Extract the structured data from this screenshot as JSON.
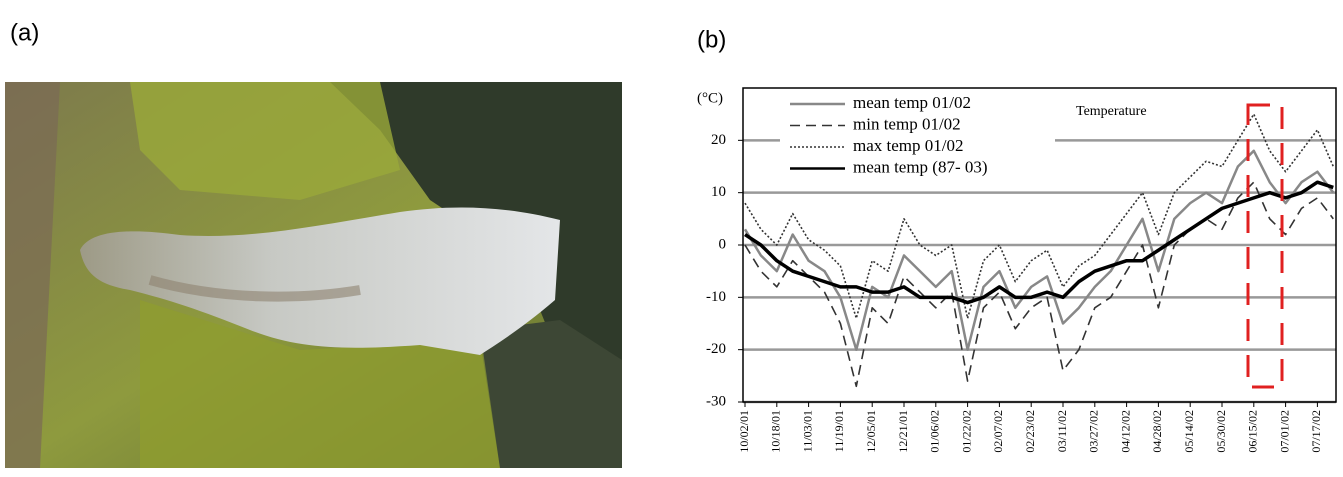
{
  "panel_labels": [
    "(a)",
    "(b)"
  ],
  "chart_data": {
    "type": "line",
    "y_label": "(°C)",
    "annotation": "Temperature",
    "categories": [
      "10/02/01",
      null,
      "10/18/01",
      null,
      "11/03/01",
      null,
      "11/19/01",
      null,
      "12/05/01",
      null,
      "12/21/01",
      null,
      "01/06/02",
      null,
      "01/22/02",
      null,
      "02/07/02",
      null,
      "02/23/02",
      null,
      "03/11/02",
      null,
      "03/27/02",
      null,
      "04/12/02",
      null,
      "04/28/02",
      null,
      "05/14/02",
      null,
      "05/30/02",
      null,
      "06/15/02",
      null,
      "07/01/02",
      null,
      "07/17/02",
      null
    ],
    "series": [
      {
        "name": "mean temp 01/02",
        "color": "#888888",
        "dash": "solid",
        "width": 2.5,
        "values": [
          3,
          -2,
          -5,
          2,
          -3,
          -5,
          -10,
          -20,
          -8,
          -10,
          -2,
          -5,
          -8,
          -5,
          -20,
          -8,
          -5,
          -12,
          -8,
          -6,
          -15,
          -12,
          -8,
          -5,
          0,
          5,
          -5,
          5,
          8,
          10,
          8,
          15,
          18,
          12,
          8,
          12,
          14,
          10
        ]
      },
      {
        "name": "min temp 01/02",
        "color": "#333333",
        "dash": "dashed",
        "width": 1.6,
        "values": [
          0,
          -5,
          -8,
          -3,
          -6,
          -9,
          -15,
          -27,
          -12,
          -15,
          -6,
          -9,
          -12,
          -9,
          -26,
          -12,
          -9,
          -16,
          -12,
          -10,
          -24,
          -20,
          -12,
          -10,
          -5,
          0,
          -12,
          0,
          3,
          5,
          3,
          9,
          12,
          5,
          2,
          7,
          9,
          5
        ]
      },
      {
        "name": "max temp 01/02",
        "color": "#333333",
        "dash": "dotted",
        "width": 1.6,
        "values": [
          8,
          3,
          0,
          6,
          1,
          -1,
          -4,
          -14,
          -3,
          -5,
          5,
          0,
          -2,
          0,
          -14,
          -3,
          0,
          -7,
          -3,
          -1,
          -8,
          -4,
          -2,
          2,
          6,
          10,
          2,
          10,
          13,
          16,
          15,
          20,
          25,
          18,
          14,
          18,
          22,
          15
        ]
      },
      {
        "name": "mean temp (87- 03)",
        "color": "#000000",
        "dash": "solid",
        "width": 3.5,
        "values": [
          2,
          0,
          -3,
          -5,
          -6,
          -7,
          -8,
          -8,
          -9,
          -9,
          -8,
          -10,
          -10,
          -10,
          -11,
          -10,
          -8,
          -10,
          -10,
          -9,
          -10,
          -7,
          -5,
          -4,
          -3,
          -3,
          -1,
          1,
          3,
          5,
          7,
          8,
          9,
          10,
          9,
          10,
          12,
          11
        ]
      }
    ],
    "ylim": [
      -30,
      30
    ],
    "yticks": [
      -30,
      -20,
      -10,
      0,
      10,
      20
    ],
    "grid": true
  }
}
